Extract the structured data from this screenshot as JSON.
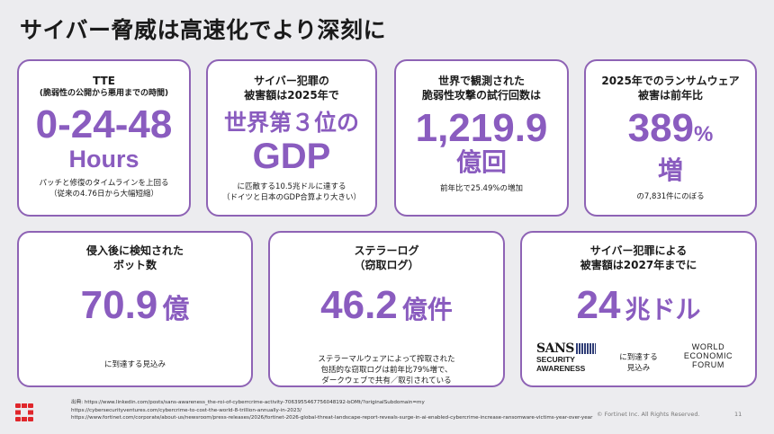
{
  "title": "サイバー脅威は高速化でより深刻に",
  "cards": {
    "tte": {
      "heading": "TTE",
      "subheading": "(脆弱性の公開から悪用までの時間)",
      "value": "0-24-48",
      "unit": "Hours",
      "note_line1": "パッチと修復のタイムラインを上回る",
      "note_line2": "（従来の4.76日から大幅短縮）"
    },
    "gdp": {
      "heading_line1": "サイバー犯罪の",
      "heading_line2": "被害額は2025年で",
      "value_line1": "世界第３位の",
      "value_line2": "GDP",
      "note_line1": "に匹敵する10.5兆ドルに達する",
      "note_line2": "（ドイツと日本のGDP合算より大きい）"
    },
    "attacks": {
      "heading_line1": "世界で観測された",
      "heading_line2": "脆弱性攻撃の試行回数は",
      "value": "1,219.9",
      "unit": "億回",
      "note": "前年比で25.49%の増加"
    },
    "ransomware": {
      "heading_line1": "2025年でのランサムウェア",
      "heading_line2": "被害は前年比",
      "value": "389",
      "percent": "%",
      "unit": "増",
      "note": "の7,831件にのぼる"
    },
    "bots": {
      "heading_line1": "侵入後に検知された",
      "heading_line2": "ボット数",
      "value": "70.9",
      "unit": "億",
      "note": "に到達する見込み"
    },
    "stealer": {
      "heading_line1": "ステラーログ",
      "heading_line2": "（窃取ログ）",
      "value": "46.2",
      "unit": "億件",
      "note_line1": "ステラーマルウェアによって搾取された",
      "note_line2": "包括的な窃取ログは前年比79%増で、",
      "note_line3": "ダークウェブで共有／取引されている"
    },
    "damage2027": {
      "heading_line1": "サイバー犯罪による",
      "heading_line2": "被害額は2027年までに",
      "value": "24",
      "unit": "兆ドル",
      "note_line1": "に到達する",
      "note_line2": "見込み",
      "sans_logo": {
        "word": "SANS",
        "line1": "SECURITY",
        "line2": "AWARENESS"
      },
      "wef_logo": {
        "line1": "WORLD",
        "line2": "ECONOMIC",
        "line3": "FORUM"
      }
    }
  },
  "footer": {
    "sources_label": "出典:",
    "source1": "https://www.linkedin.com/posts/sans-awareness_the-roi-of-cyberrcrime-activity-7063955467756048192-bOMt/?originalSubdomain=my",
    "source2": "https://cybersecurityventures.com/cybercrime-to-cost-the-world-8-trillion-annually-in-2023/",
    "source3": "https://www.fortinet.com/corporate/about-us/newsroom/press-releases/2026/fortinet-2026-global-threat-landscape-report-reveals-surge-in-ai-enabled-cybercrime-increase-ransomware-victims-year-over-year",
    "copyright": "© Fortinet Inc. All Rights Reserved.",
    "page_number": "11"
  },
  "colors": {
    "accent_purple": "#8a5cbf",
    "card_border": "#8e63b5",
    "fortinet_red": "#e0262b"
  }
}
